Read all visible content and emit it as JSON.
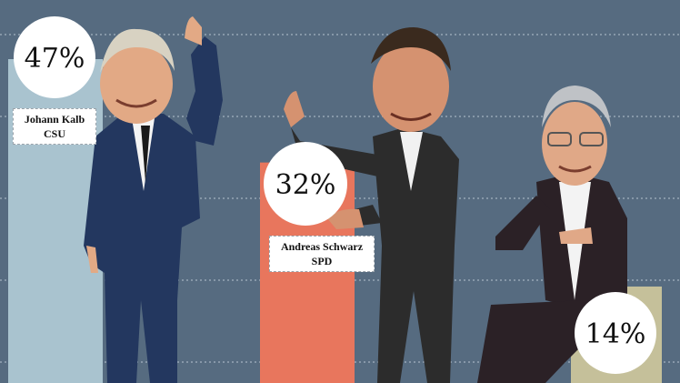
{
  "chart_data": {
    "type": "bar",
    "title": "",
    "xlabel": "",
    "ylabel": "",
    "grid": true,
    "categories": [
      "Johann Kalb",
      "Andreas Schwarz",
      ""
    ],
    "values": [
      47,
      32,
      14
    ],
    "value_labels": [
      "47%",
      "32%",
      "14%"
    ],
    "series": [
      {
        "name": "Johann Kalb",
        "party": "CSU",
        "value": 47,
        "color": "#a9c3cf"
      },
      {
        "name": "Andreas Schwarz",
        "party": "SPD",
        "value": 32,
        "color": "#e8765d"
      },
      {
        "name": "",
        "party": "",
        "value": 14,
        "color": "#c5c09a"
      }
    ],
    "ylim": [
      0,
      60
    ]
  },
  "colors": {
    "background": "#566b80",
    "gridline": "#b7c3cf"
  },
  "candidates": [
    {
      "name": "Johann Kalb",
      "party": "CSU",
      "percent_label": "47%"
    },
    {
      "name": "Andreas Schwarz",
      "party": "SPD",
      "percent_label": "32%"
    },
    {
      "name": "",
      "party": "",
      "percent_label": "14%"
    }
  ]
}
